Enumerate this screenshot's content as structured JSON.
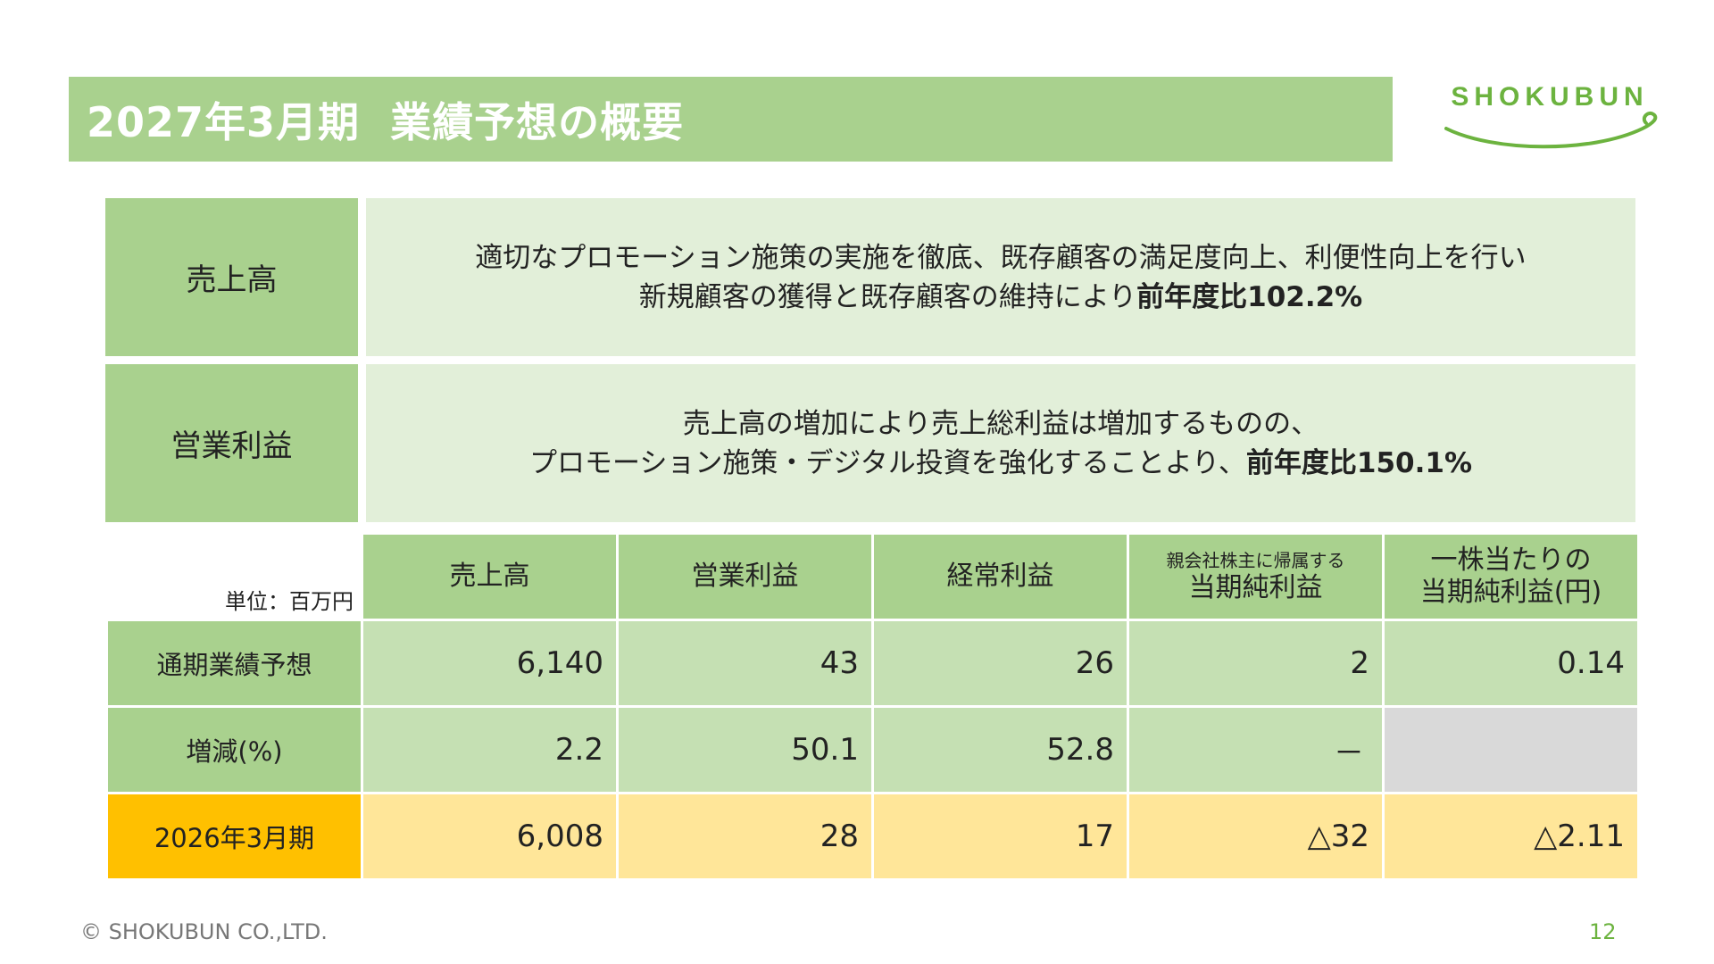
{
  "title": "2027年3月期  業績予想の概要",
  "logo": {
    "text": "SHOKUBUN",
    "color": "#6cb33f"
  },
  "colors": {
    "accent_green": "#a9d18e",
    "light_green": "#e2efd9",
    "table_green": "#c5e0b3",
    "prev_label": "#ffc000",
    "prev_row": "#ffe699",
    "empty_cell": "#d9d9d9"
  },
  "summary": [
    {
      "label": "売上高",
      "line1": "適切なプロモーション施策の実施を徹底、既存顧客の満足度向上、利便性向上を行い",
      "line2_normal": "新規顧客の獲得と既存顧客の維持により",
      "line2_bold": "前年度比102.2%"
    },
    {
      "label": "営業利益",
      "line1": "売上高の増加により売上総利益は増加するものの、",
      "line2_normal": "プロモーション施策・デジタル投資を強化することより、",
      "line2_bold": "前年度比150.1%"
    }
  ],
  "table": {
    "unit": "単位：百万円",
    "headers": [
      {
        "main": "売上高"
      },
      {
        "main": "営業利益"
      },
      {
        "main": "経常利益"
      },
      {
        "small": "親会社株主に帰属する",
        "main": "当期純利益"
      },
      {
        "line1": "一株当たりの",
        "line2": "当期純利益(円)"
      }
    ],
    "rows": [
      {
        "label": "通期業績予想",
        "values": [
          "6,140",
          "43",
          "26",
          "2",
          "0.14"
        ]
      },
      {
        "label": "増減(%)",
        "values": [
          "2.2",
          "50.1",
          "52.8",
          "－",
          ""
        ]
      },
      {
        "label": "2026年3月期",
        "values": [
          "6,008",
          "28",
          "17",
          "△32",
          "△2.11"
        ]
      }
    ]
  },
  "footer": {
    "copyright": "© SHOKUBUN CO.,LTD.",
    "page_number": "12"
  }
}
